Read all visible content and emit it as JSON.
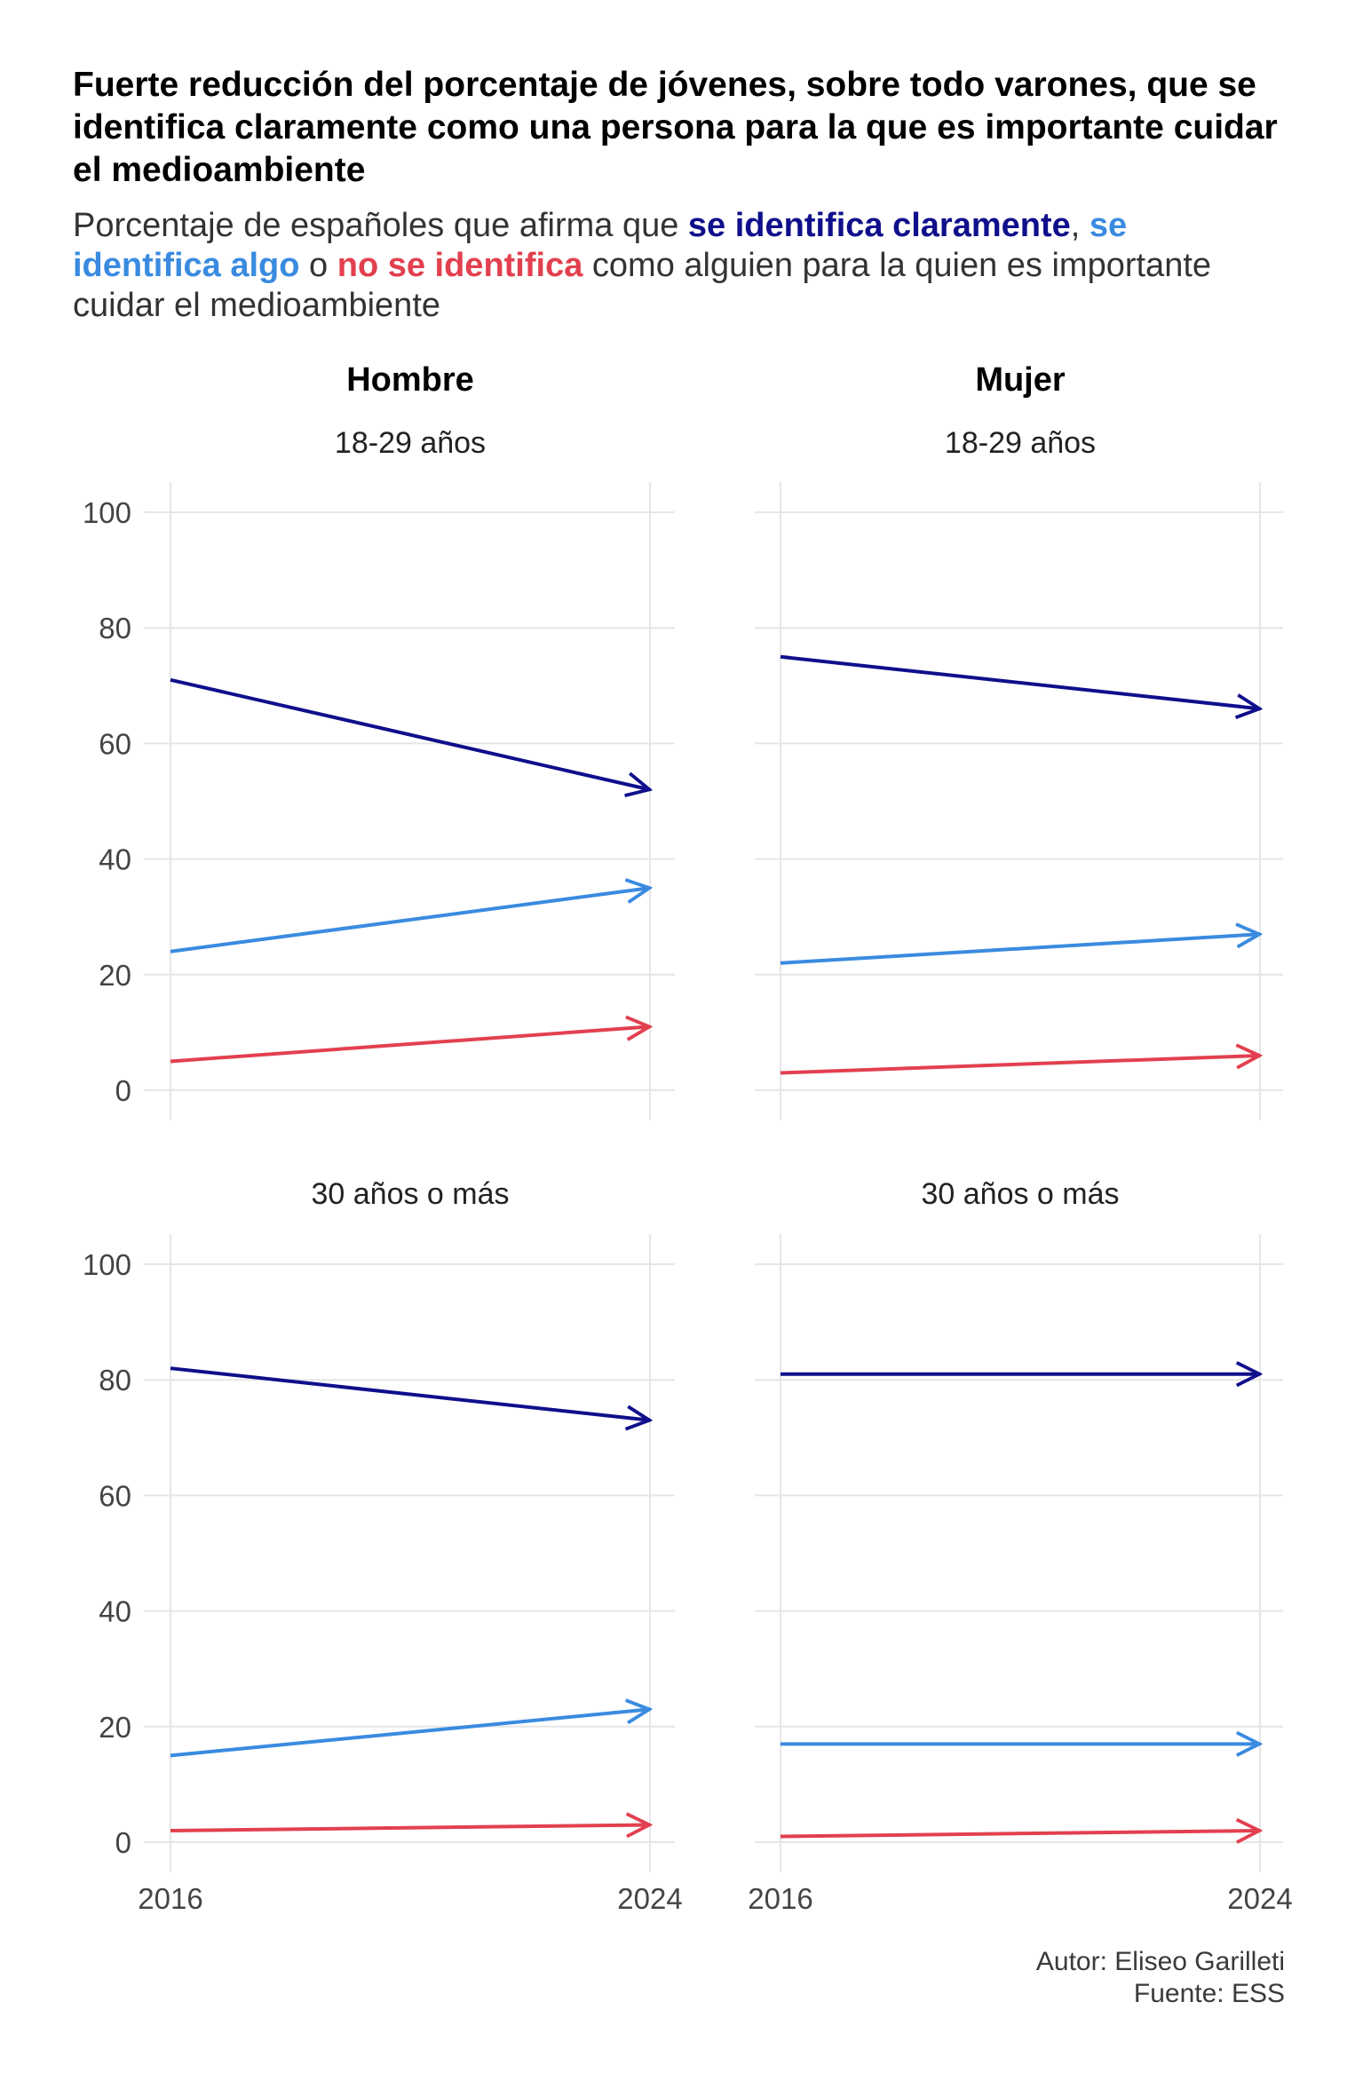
{
  "title": "Fuerte reducción del porcentaje de jóvenes, sobre todo varones, que se identifica claramente como una persona para la que es importante cuidar el medioambiente",
  "subtitle": {
    "part1": "Porcentaje de españoles que afirma que ",
    "hl1": "se identifica claramente",
    "part2": ", ",
    "hl2": "se identifica algo",
    "part3": " o ",
    "hl3": "no se identifica",
    "part4": " como alguien para la quien es importante cuidar el medioambiente"
  },
  "colors": {
    "claramente": "#0f0f8c",
    "algo": "#3a8be0",
    "no": "#e2404f",
    "grid": "#e6e6e6",
    "tick_text": "#444444"
  },
  "chart_data": {
    "type": "line",
    "x": [
      2016,
      2024
    ],
    "xticks": [
      "2016",
      "2024"
    ],
    "ylim": [
      0,
      100
    ],
    "yticks": [
      0,
      20,
      40,
      60,
      80,
      100
    ],
    "grid": true,
    "column_labels": [
      "Hombre",
      "Mujer"
    ],
    "row_labels": [
      "18-29 años",
      "30 años o más"
    ],
    "panels": [
      {
        "sex": "Hombre",
        "age": "18-29 años",
        "series": [
          {
            "key": "claramente",
            "values": [
              71,
              52
            ]
          },
          {
            "key": "algo",
            "values": [
              24,
              35
            ]
          },
          {
            "key": "no",
            "values": [
              5,
              11
            ]
          }
        ]
      },
      {
        "sex": "Mujer",
        "age": "18-29 años",
        "series": [
          {
            "key": "claramente",
            "values": [
              75,
              66
            ]
          },
          {
            "key": "algo",
            "values": [
              22,
              27
            ]
          },
          {
            "key": "no",
            "values": [
              3,
              6
            ]
          }
        ]
      },
      {
        "sex": "Hombre",
        "age": "30 años o más",
        "series": [
          {
            "key": "claramente",
            "values": [
              82,
              73
            ]
          },
          {
            "key": "algo",
            "values": [
              15,
              23
            ]
          },
          {
            "key": "no",
            "values": [
              2,
              3
            ]
          }
        ]
      },
      {
        "sex": "Mujer",
        "age": "30 años o más",
        "series": [
          {
            "key": "claramente",
            "values": [
              81,
              81
            ]
          },
          {
            "key": "algo",
            "values": [
              17,
              17
            ]
          },
          {
            "key": "no",
            "values": [
              1,
              2
            ]
          }
        ]
      }
    ]
  },
  "caption": {
    "author": "Autor: Eliseo Garilleti",
    "source": "Fuente: ESS"
  }
}
